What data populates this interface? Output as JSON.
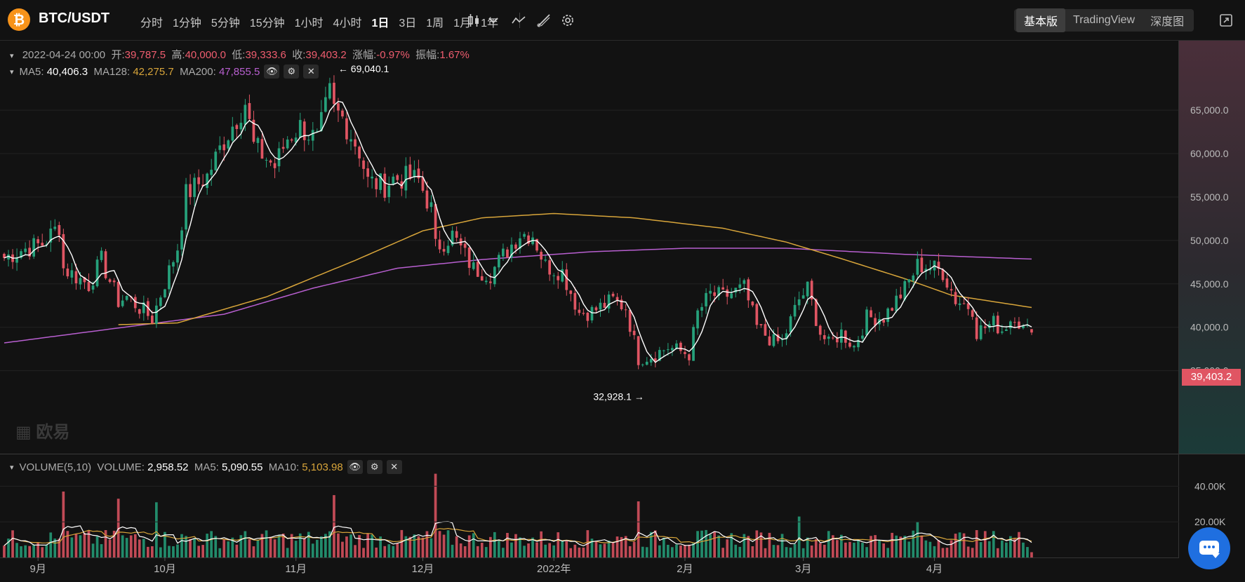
{
  "header": {
    "logo_glyph": "₿",
    "pair": "BTC/USDT",
    "intervals": [
      "分时",
      "1分钟",
      "5分钟",
      "15分钟",
      "1小时",
      "4小时",
      "1日",
      "3日",
      "1周",
      "1月",
      "1年"
    ],
    "active_interval": "1日",
    "views": [
      "基本版",
      "TradingView",
      "深度图"
    ],
    "active_view": "基本版"
  },
  "ohlc": {
    "date": "2022-04-24 00:00",
    "open_label": "开:",
    "open": "39,787.5",
    "high_label": "高:",
    "high": "40,000.0",
    "low_label": "低:",
    "low": "39,333.6",
    "close_label": "收:",
    "close": "39,403.2",
    "change_label": "涨幅:",
    "change": "-0.97%",
    "amp_label": "振幅:",
    "amp": "1.67%"
  },
  "ma_legend": {
    "ma5_label": "MA5:",
    "ma5": "40,406.3",
    "ma128_label": "MA128:",
    "ma128": "42,275.7",
    "ma200_label": "MA200:",
    "ma200": "47,855.5"
  },
  "volume_legend": {
    "title": "VOLUME(5,10)",
    "vol_label": "VOLUME:",
    "vol": "2,958.52",
    "ma5_label": "MA5:",
    "ma5": "5,090.55",
    "ma10_label": "MA10:",
    "ma10": "5,103.98"
  },
  "current_price_tag": "39,403.2",
  "watermark": "欧易",
  "colors": {
    "up": "#26a17b",
    "down": "#e05563",
    "ma5": "#ffffff",
    "ma128": "#d8a53a",
    "ma200": "#b85fd0",
    "background": "#121212"
  },
  "chart_data": {
    "type": "candlestick",
    "ylim": [
      31500,
      73000
    ],
    "y_ticks": [
      35000,
      40000,
      45000,
      50000,
      55000,
      60000,
      65000
    ],
    "y_tick_labels": [
      "35,000.0",
      "40,000.0",
      "45,000.0",
      "50,000.0",
      "55,000.0",
      "60,000.0",
      "65,000.0"
    ],
    "x_tick_labels": [
      "9月",
      "10月",
      "11月",
      "12月",
      "2022年",
      "2月",
      "3月",
      "4月"
    ],
    "x_tick_dates": [
      "2021-09-01",
      "2021-10-01",
      "2021-11-01",
      "2021-12-01",
      "2022-01-01",
      "2022-02-01",
      "2022-03-01",
      "2022-04-01"
    ],
    "first_date": "2021-08-24",
    "last_date": "2022-04-24",
    "annotations": [
      {
        "text": "← 69,040.1",
        "date": "2021-11-10",
        "value": 69040.1
      },
      {
        "text": "32,928.1 →",
        "date": "2022-01-24",
        "value": 32928.1
      }
    ],
    "close_anchors": [
      [
        "2021-08-24",
        48000
      ],
      [
        "2021-08-28",
        48900
      ],
      [
        "2021-09-02",
        49600
      ],
      [
        "2021-09-06",
        51700
      ],
      [
        "2021-09-07",
        46800
      ],
      [
        "2021-09-13",
        44900
      ],
      [
        "2021-09-16",
        47700
      ],
      [
        "2021-09-20",
        43000
      ],
      [
        "2021-09-22",
        43500
      ],
      [
        "2021-09-28",
        41000
      ],
      [
        "2021-09-30",
        43800
      ],
      [
        "2021-10-04",
        49200
      ],
      [
        "2021-10-06",
        55300
      ],
      [
        "2021-10-11",
        57400
      ],
      [
        "2021-10-15",
        61500
      ],
      [
        "2021-10-20",
        65900
      ],
      [
        "2021-10-22",
        60900
      ],
      [
        "2021-10-27",
        58500
      ],
      [
        "2021-10-30",
        61800
      ],
      [
        "2021-11-02",
        63100
      ],
      [
        "2021-11-06",
        61500
      ],
      [
        "2021-11-09",
        66900
      ],
      [
        "2021-11-10",
        64900
      ],
      [
        "2021-11-12",
        64100
      ],
      [
        "2021-11-16",
        60300
      ],
      [
        "2021-11-18",
        56800
      ],
      [
        "2021-11-22",
        56300
      ],
      [
        "2021-11-24",
        57100
      ],
      [
        "2021-11-28",
        57200
      ],
      [
        "2021-11-30",
        56900
      ],
      [
        "2021-12-03",
        53600
      ],
      [
        "2021-12-04",
        49200
      ],
      [
        "2021-12-08",
        50600
      ],
      [
        "2021-12-13",
        46700
      ],
      [
        "2021-12-17",
        46200
      ],
      [
        "2021-12-21",
        48900
      ],
      [
        "2021-12-24",
        50800
      ],
      [
        "2021-12-27",
        50700
      ],
      [
        "2021-12-30",
        47100
      ],
      [
        "2022-01-03",
        46400
      ],
      [
        "2022-01-07",
        41700
      ],
      [
        "2022-01-10",
        41800
      ],
      [
        "2022-01-15",
        43100
      ],
      [
        "2022-01-18",
        42300
      ],
      [
        "2022-01-21",
        36400
      ],
      [
        "2022-01-24",
        36700
      ],
      [
        "2022-01-28",
        37700
      ],
      [
        "2022-02-02",
        36900
      ],
      [
        "2022-02-04",
        41600
      ],
      [
        "2022-02-07",
        43800
      ],
      [
        "2022-02-10",
        43500
      ],
      [
        "2022-02-15",
        44500
      ],
      [
        "2022-02-18",
        40000
      ],
      [
        "2022-02-22",
        38300
      ],
      [
        "2022-02-24",
        38300
      ],
      [
        "2022-02-28",
        43200
      ],
      [
        "2022-03-02",
        44400
      ],
      [
        "2022-03-05",
        39400
      ],
      [
        "2022-03-07",
        38000
      ],
      [
        "2022-03-10",
        39400
      ],
      [
        "2022-03-13",
        37800
      ],
      [
        "2022-03-16",
        41100
      ],
      [
        "2022-03-20",
        41200
      ],
      [
        "2022-03-25",
        44400
      ],
      [
        "2022-03-28",
        47100
      ],
      [
        "2022-03-30",
        47100
      ],
      [
        "2022-04-03",
        46400
      ],
      [
        "2022-04-06",
        43200
      ],
      [
        "2022-04-10",
        42200
      ],
      [
        "2022-04-11",
        39500
      ],
      [
        "2022-04-15",
        40500
      ],
      [
        "2022-04-17",
        39700
      ],
      [
        "2022-04-20",
        41500
      ],
      [
        "2022-04-22",
        39700
      ],
      [
        "2022-04-24",
        39403.2
      ]
    ],
    "ma128_anchors": [
      [
        "2021-09-20",
        40300
      ],
      [
        "2021-10-04",
        40500
      ],
      [
        "2021-10-25",
        43500
      ],
      [
        "2021-11-15",
        47700
      ],
      [
        "2021-12-01",
        51100
      ],
      [
        "2021-12-15",
        52600
      ],
      [
        "2022-01-01",
        53100
      ],
      [
        "2022-01-20",
        52600
      ],
      [
        "2022-02-10",
        51400
      ],
      [
        "2022-02-25",
        49800
      ],
      [
        "2022-03-10",
        47900
      ],
      [
        "2022-03-25",
        45600
      ],
      [
        "2022-04-05",
        43700
      ],
      [
        "2022-04-24",
        42275.7
      ]
    ],
    "ma200_anchors": [
      [
        "2021-08-24",
        38200
      ],
      [
        "2021-09-15",
        39600
      ],
      [
        "2021-10-15",
        41500
      ],
      [
        "2021-11-05",
        44500
      ],
      [
        "2021-11-25",
        46800
      ],
      [
        "2021-12-15",
        47800
      ],
      [
        "2022-01-10",
        48700
      ],
      [
        "2022-02-01",
        49100
      ],
      [
        "2022-02-25",
        49100
      ],
      [
        "2022-03-25",
        48400
      ],
      [
        "2022-04-10",
        48100
      ],
      [
        "2022-04-24",
        47855.5
      ]
    ],
    "volume": {
      "ylim": [
        0,
        50000
      ],
      "y_ticks": [
        20000,
        40000
      ],
      "y_tick_labels": [
        "20.00K",
        "40.00K"
      ],
      "spikes": [
        [
          "2021-09-07",
          37000
        ],
        [
          "2021-09-20",
          33000
        ],
        [
          "2021-09-29",
          31000
        ],
        [
          "2021-11-10",
          35000
        ],
        [
          "2021-12-04",
          47000
        ],
        [
          "2022-01-21",
          31500
        ],
        [
          "2022-02-28",
          23000
        ],
        [
          "2022-03-28",
          20000
        ]
      ],
      "base_level": 11500,
      "last": 2958.52
    }
  }
}
